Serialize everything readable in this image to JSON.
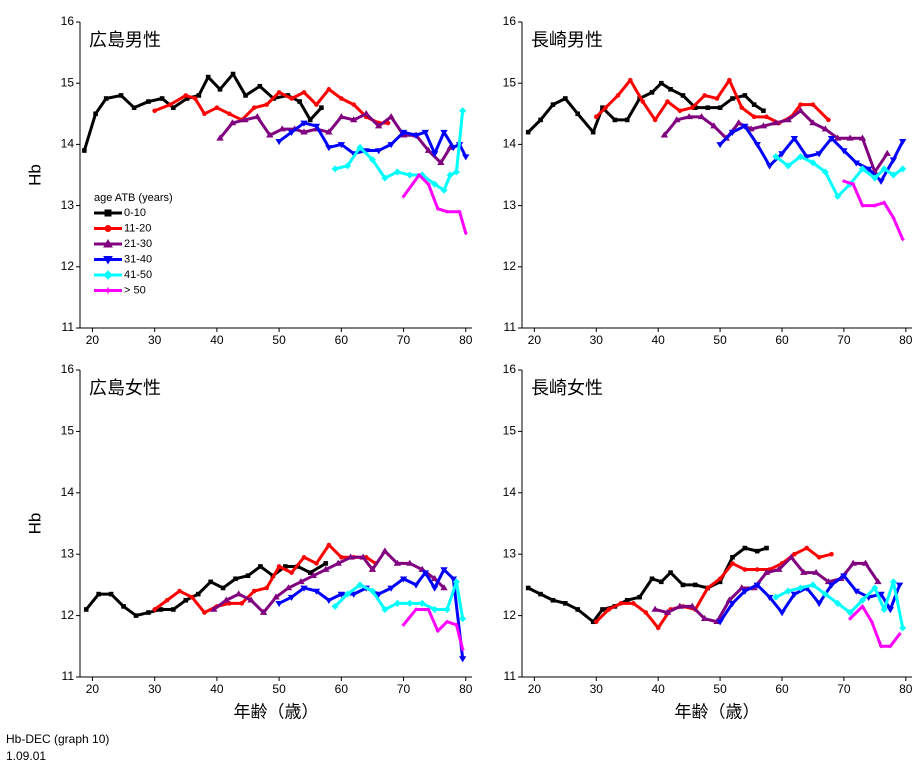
{
  "legend": {
    "title": "age ATB (years)",
    "items": [
      {
        "name": "0-10",
        "color": "#000000",
        "marker": "square"
      },
      {
        "name": "11-20",
        "color": "#ff0000",
        "marker": "circle"
      },
      {
        "name": "21-30",
        "color": "#800080",
        "marker": "triangle-up"
      },
      {
        "name": "31-40",
        "color": "#0000ff",
        "marker": "triangle-down"
      },
      {
        "name": "41-50",
        "color": "#00ffff",
        "marker": "diamond"
      },
      {
        "name": "> 50",
        "color": "#ff00ff",
        "marker": "plus"
      }
    ]
  },
  "footer": [
    "Hb-DEC (graph 10)",
    "1.09.01"
  ],
  "chart_data": [
    {
      "type": "line",
      "title": "広島男性",
      "ylabel": "Hb",
      "xlim": [
        18,
        81
      ],
      "ylim": [
        11,
        16
      ],
      "xticks": [
        20,
        30,
        40,
        50,
        60,
        70,
        80
      ],
      "yticks": [
        11,
        12,
        13,
        14,
        15,
        16
      ],
      "series": [
        {
          "x": [
            18.7,
            20.5,
            22.2,
            24.6,
            26.7,
            29,
            31.2,
            33,
            35.2,
            37.1,
            38.6,
            40.5,
            42.6,
            44.6,
            46.9,
            49.1,
            51.4,
            53.3,
            55,
            56.8
          ],
          "values": [
            13.9,
            14.5,
            14.75,
            14.8,
            14.6,
            14.7,
            14.75,
            14.6,
            14.75,
            14.8,
            15.1,
            14.9,
            15.15,
            14.8,
            14.95,
            14.75,
            14.8,
            14.7,
            14.4,
            14.6
          ]
        },
        {
          "x": [
            30,
            32.5,
            35,
            36.5,
            38,
            40,
            42,
            44,
            46,
            48,
            50,
            52,
            54,
            56,
            58,
            60,
            62,
            64,
            66,
            67.5
          ],
          "values": [
            14.55,
            14.65,
            14.8,
            14.75,
            14.5,
            14.6,
            14.5,
            14.4,
            14.6,
            14.65,
            14.85,
            14.75,
            14.85,
            14.65,
            14.9,
            14.75,
            14.65,
            14.45,
            14.35,
            14.35
          ]
        },
        {
          "x": [
            40.5,
            42.5,
            44.5,
            46.5,
            48.5,
            50.5,
            52.5,
            54,
            56,
            58,
            60,
            62,
            64,
            66,
            68,
            70,
            72,
            74,
            76,
            77.5
          ],
          "values": [
            14.1,
            14.35,
            14.4,
            14.45,
            14.15,
            14.25,
            14.25,
            14.2,
            14.25,
            14.2,
            14.45,
            14.4,
            14.5,
            14.3,
            14.45,
            14.15,
            14.15,
            13.9,
            13.7,
            13.95
          ]
        },
        {
          "x": [
            50,
            52,
            54,
            56,
            58,
            60,
            62,
            64,
            66,
            68,
            70,
            72,
            73.5,
            75,
            76.5,
            78,
            79,
            80
          ],
          "values": [
            14.05,
            14.2,
            14.35,
            14.3,
            13.95,
            14.0,
            13.85,
            13.9,
            13.9,
            14.0,
            14.2,
            14.15,
            14.2,
            13.85,
            14.2,
            13.95,
            14.0,
            13.8
          ]
        },
        {
          "x": [
            59,
            61,
            63,
            65,
            67,
            69,
            71,
            73,
            75,
            76.5,
            77.5,
            78.5,
            79.5
          ],
          "values": [
            13.6,
            13.65,
            13.95,
            13.75,
            13.45,
            13.55,
            13.5,
            13.5,
            13.35,
            13.25,
            13.5,
            13.55,
            14.55
          ]
        },
        {
          "x": [
            70,
            72.5,
            74,
            75.5,
            77,
            79,
            80
          ],
          "values": [
            13.15,
            13.5,
            13.35,
            12.95,
            12.9,
            12.9,
            12.55
          ]
        }
      ]
    },
    {
      "type": "line",
      "title": "長崎男性",
      "xlim": [
        18,
        81
      ],
      "ylim": [
        11,
        16
      ],
      "xticks": [
        20,
        30,
        40,
        50,
        60,
        70,
        80
      ],
      "yticks": [
        11,
        12,
        13,
        14,
        15,
        16
      ],
      "series": [
        {
          "x": [
            19,
            21,
            23,
            25,
            27,
            29.5,
            31,
            33,
            35,
            37,
            39,
            40.5,
            42,
            44,
            46,
            48,
            50,
            52,
            54,
            55.5,
            57
          ],
          "values": [
            14.2,
            14.4,
            14.65,
            14.75,
            14.5,
            14.2,
            14.6,
            14.4,
            14.4,
            14.75,
            14.85,
            15.0,
            14.9,
            14.8,
            14.6,
            14.6,
            14.6,
            14.75,
            14.8,
            14.65,
            14.55
          ]
        },
        {
          "x": [
            30,
            31.5,
            33.5,
            35.5,
            37.5,
            39.5,
            41.5,
            43.5,
            45.5,
            47.5,
            49.5,
            51.5,
            53.5,
            55.5,
            57.5,
            59.5,
            61.5,
            63,
            65,
            67.5
          ],
          "values": [
            14.45,
            14.6,
            14.8,
            15.05,
            14.7,
            14.4,
            14.7,
            14.55,
            14.6,
            14.8,
            14.75,
            15.05,
            14.6,
            14.45,
            14.45,
            14.35,
            14.45,
            14.65,
            14.65,
            14.4
          ]
        },
        {
          "x": [
            41,
            43,
            45,
            47,
            49,
            51,
            53,
            55,
            57,
            59,
            61,
            63,
            65,
            67,
            69,
            71,
            73,
            75,
            77
          ],
          "values": [
            14.15,
            14.4,
            14.45,
            14.45,
            14.3,
            14.1,
            14.35,
            14.25,
            14.3,
            14.35,
            14.4,
            14.55,
            14.35,
            14.25,
            14.1,
            14.1,
            14.1,
            13.55,
            13.85
          ]
        },
        {
          "x": [
            50,
            52,
            54,
            56,
            58,
            60,
            62,
            64,
            66,
            68,
            70,
            72,
            74,
            76,
            78,
            79.5
          ],
          "values": [
            14.0,
            14.2,
            14.3,
            14.0,
            13.65,
            13.85,
            14.1,
            13.8,
            13.85,
            14.1,
            13.9,
            13.7,
            13.6,
            13.4,
            13.75,
            14.05
          ]
        },
        {
          "x": [
            59,
            61,
            63,
            65,
            67,
            69,
            71,
            73,
            75,
            76.5,
            78,
            79.5
          ],
          "values": [
            13.8,
            13.65,
            13.8,
            13.7,
            13.55,
            13.15,
            13.35,
            13.6,
            13.45,
            13.6,
            13.5,
            13.6
          ]
        },
        {
          "x": [
            70,
            71.5,
            73,
            75,
            76.5,
            78,
            79.5
          ],
          "values": [
            13.4,
            13.35,
            13.0,
            13.0,
            13.05,
            12.8,
            12.45
          ]
        }
      ]
    },
    {
      "type": "line",
      "title": "広島女性",
      "ylabel": "Hb",
      "xlabel": "年齢（歳）",
      "xlim": [
        18,
        81
      ],
      "ylim": [
        11,
        16
      ],
      "xticks": [
        20,
        30,
        40,
        50,
        60,
        70,
        80
      ],
      "yticks": [
        11,
        12,
        13,
        14,
        15,
        16
      ],
      "series": [
        {
          "x": [
            19,
            21,
            23,
            25,
            27,
            29,
            31,
            33,
            35,
            37,
            39,
            41,
            43,
            45,
            47,
            49,
            51,
            53,
            55,
            57.5
          ],
          "values": [
            12.1,
            12.35,
            12.35,
            12.15,
            12.0,
            12.05,
            12.1,
            12.1,
            12.25,
            12.35,
            12.55,
            12.45,
            12.6,
            12.65,
            12.8,
            12.65,
            12.8,
            12.8,
            12.7,
            12.85
          ]
        },
        {
          "x": [
            30,
            32,
            34,
            36,
            38,
            40,
            42,
            44,
            46,
            48,
            50,
            52,
            54,
            56,
            58,
            60,
            62,
            64,
            65.5
          ],
          "values": [
            12.1,
            12.25,
            12.4,
            12.3,
            12.05,
            12.15,
            12.2,
            12.2,
            12.4,
            12.45,
            12.8,
            12.7,
            12.95,
            12.85,
            13.15,
            12.95,
            12.95,
            12.95,
            12.85
          ]
        },
        {
          "x": [
            39.5,
            41.5,
            43.5,
            45.5,
            47.5,
            49.5,
            51.5,
            53.5,
            55.5,
            57.5,
            59.5,
            61.5,
            63.5,
            65,
            67,
            69,
            71,
            73,
            75,
            76.5
          ],
          "values": [
            12.1,
            12.25,
            12.35,
            12.25,
            12.05,
            12.3,
            12.45,
            12.55,
            12.65,
            12.75,
            12.85,
            12.95,
            12.95,
            12.75,
            13.05,
            12.85,
            12.85,
            12.75,
            12.6,
            12.45
          ]
        },
        {
          "x": [
            50,
            52,
            54,
            56,
            58,
            60,
            62,
            64,
            66,
            68,
            70,
            72,
            73.5,
            75,
            76.5,
            78,
            79.5
          ],
          "values": [
            12.2,
            12.3,
            12.45,
            12.4,
            12.25,
            12.35,
            12.35,
            12.45,
            12.35,
            12.45,
            12.6,
            12.5,
            12.7,
            12.45,
            12.75,
            12.6,
            11.3
          ]
        },
        {
          "x": [
            59,
            61,
            63,
            65,
            67,
            69,
            71,
            73,
            75,
            77,
            78.5,
            79.5
          ],
          "values": [
            12.15,
            12.35,
            12.5,
            12.4,
            12.1,
            12.2,
            12.2,
            12.2,
            12.1,
            12.1,
            12.55,
            11.95
          ]
        },
        {
          "x": [
            70,
            72,
            74,
            75.5,
            77,
            78.5,
            79.5
          ],
          "values": [
            11.85,
            12.1,
            12.1,
            11.75,
            11.9,
            11.85,
            11.45
          ]
        }
      ]
    },
    {
      "type": "line",
      "title": "長崎女性",
      "xlabel": "年齢（歳）",
      "xlim": [
        18,
        81
      ],
      "ylim": [
        11,
        16
      ],
      "xticks": [
        20,
        30,
        40,
        50,
        60,
        70,
        80
      ],
      "yticks": [
        11,
        12,
        13,
        14,
        15,
        16
      ],
      "series": [
        {
          "x": [
            19,
            21,
            23,
            25,
            27,
            29.5,
            31,
            33,
            35,
            37,
            39,
            40.5,
            42,
            44,
            46,
            48,
            50,
            52,
            54,
            56,
            57.5
          ],
          "values": [
            12.45,
            12.35,
            12.25,
            12.2,
            12.1,
            11.9,
            12.1,
            12.15,
            12.25,
            12.3,
            12.6,
            12.55,
            12.7,
            12.5,
            12.5,
            12.45,
            12.55,
            12.95,
            13.1,
            13.05,
            13.1
          ]
        },
        {
          "x": [
            30,
            32,
            34,
            36,
            38,
            40,
            42,
            44,
            46,
            48,
            50,
            52,
            54,
            56,
            58,
            60,
            62,
            64,
            66,
            68
          ],
          "values": [
            11.9,
            12.1,
            12.2,
            12.2,
            12.05,
            11.8,
            12.1,
            12.15,
            12.1,
            12.45,
            12.6,
            12.85,
            12.75,
            12.75,
            12.75,
            12.85,
            13.0,
            13.1,
            12.95,
            13.0
          ]
        },
        {
          "x": [
            39.5,
            41.5,
            43.5,
            45.5,
            47.5,
            49.5,
            51.5,
            53.5,
            55.5,
            57.5,
            59.5,
            61.5,
            63.5,
            65.5,
            67.5,
            69.5,
            71.5,
            73.5,
            75.5
          ],
          "values": [
            12.1,
            12.05,
            12.15,
            12.15,
            11.95,
            11.9,
            12.25,
            12.45,
            12.45,
            12.7,
            12.75,
            12.95,
            12.7,
            12.7,
            12.55,
            12.6,
            12.85,
            12.85,
            12.55
          ]
        },
        {
          "x": [
            50,
            52,
            54,
            56,
            58,
            60,
            62,
            64,
            66,
            68,
            70,
            72,
            74,
            76,
            77.5,
            79
          ],
          "values": [
            11.9,
            12.2,
            12.4,
            12.5,
            12.3,
            12.05,
            12.35,
            12.45,
            12.2,
            12.5,
            12.65,
            12.4,
            12.3,
            12.35,
            12.1,
            12.5
          ]
        },
        {
          "x": [
            59,
            61,
            63,
            65,
            67,
            69,
            71,
            73,
            75,
            76.5,
            78,
            79.5
          ],
          "values": [
            12.3,
            12.4,
            12.45,
            12.5,
            12.35,
            12.2,
            12.05,
            12.25,
            12.45,
            12.1,
            12.55,
            11.8
          ]
        },
        {
          "x": [
            71,
            73,
            74.5,
            76,
            77.5,
            79
          ],
          "values": [
            11.95,
            12.15,
            11.9,
            11.5,
            11.5,
            11.7
          ]
        }
      ]
    }
  ]
}
